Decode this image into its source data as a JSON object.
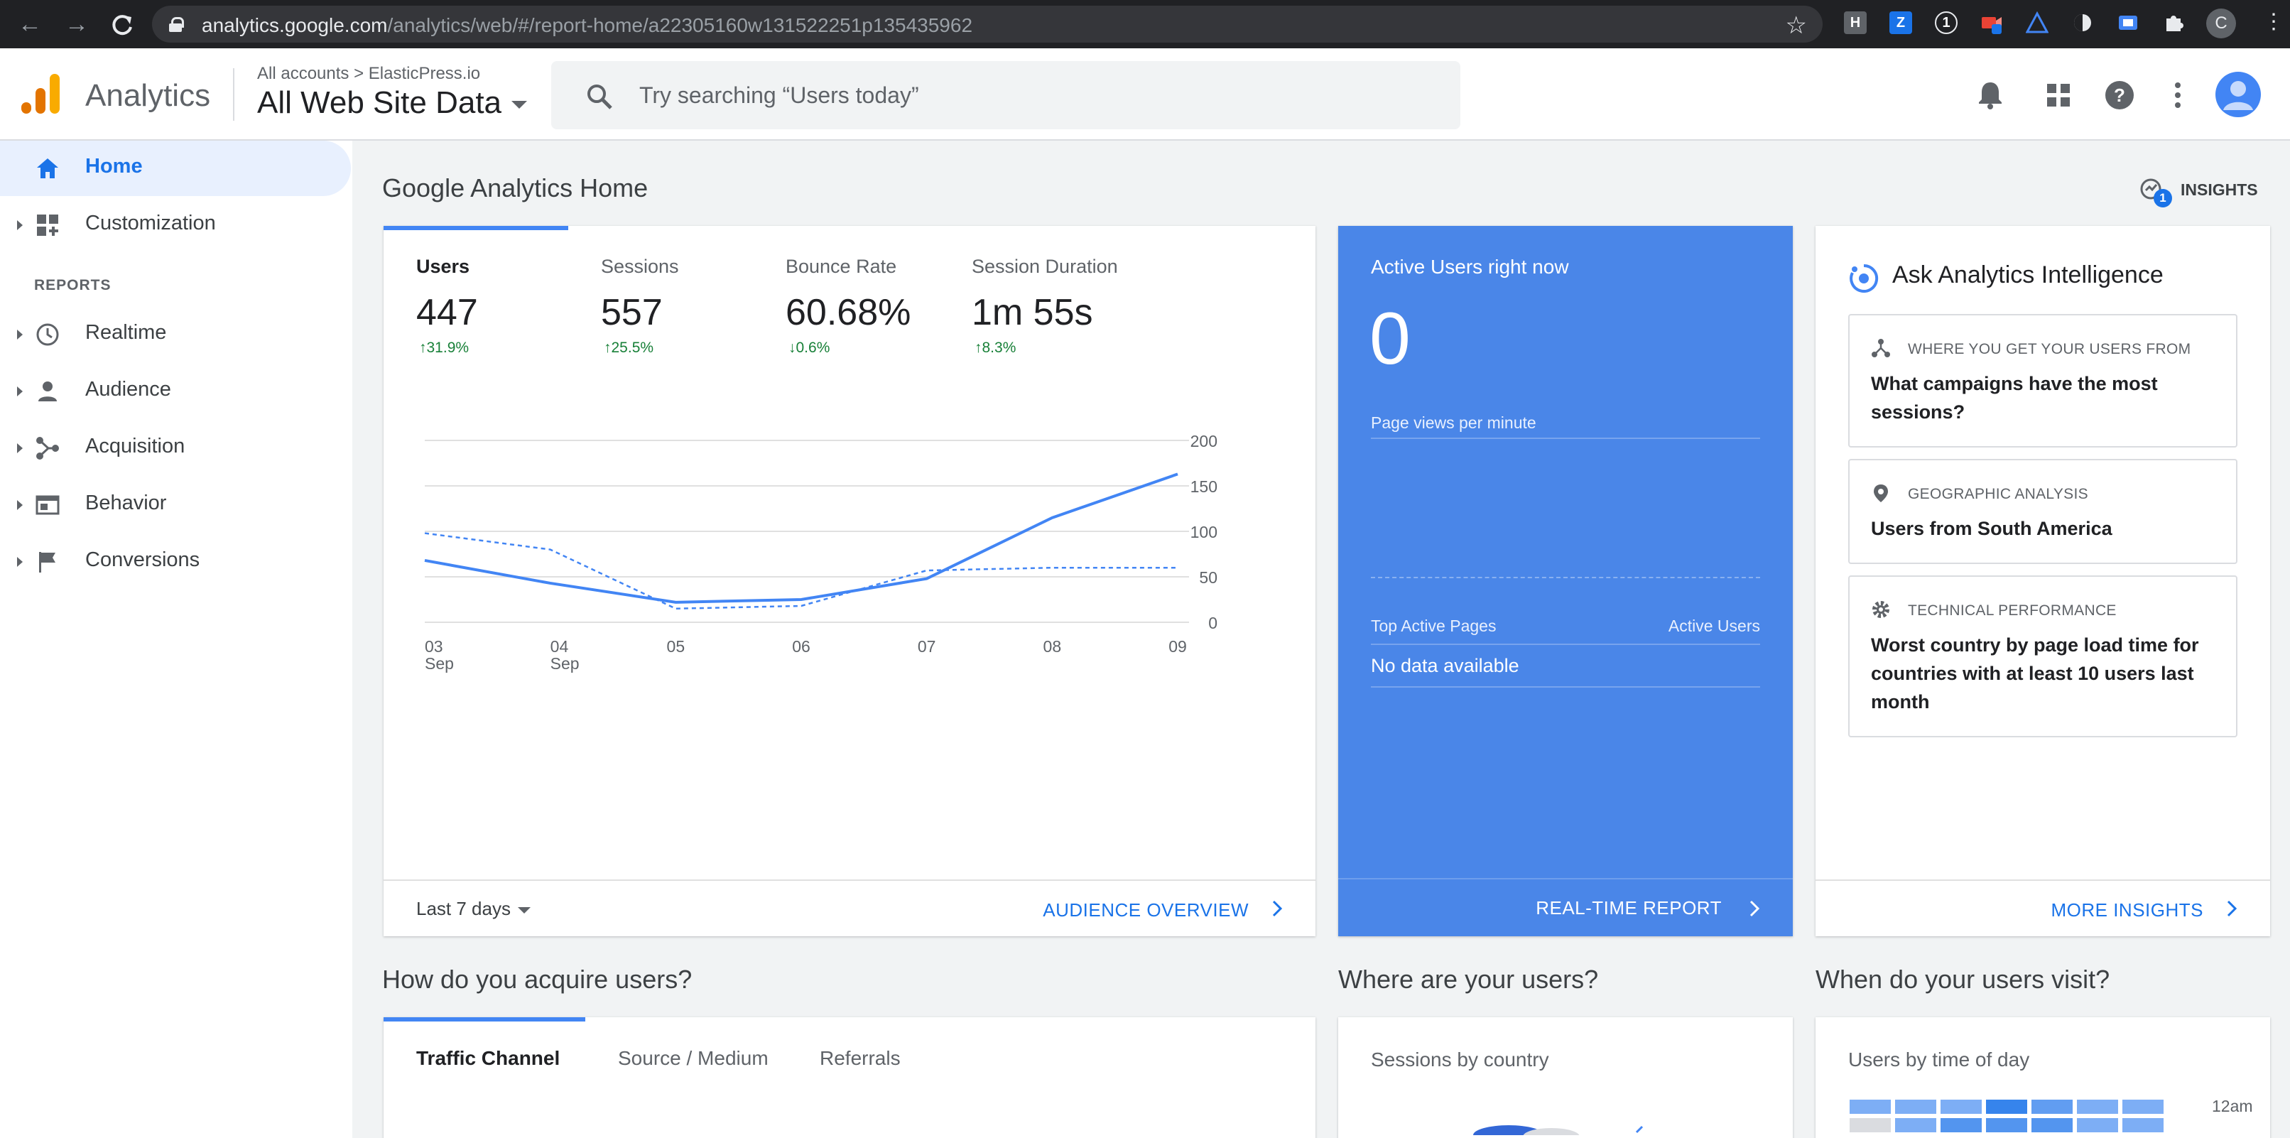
{
  "browser": {
    "url_host": "analytics.google.com",
    "url_path": "/analytics/web/#/report-home/a22305160w131522251p135435962",
    "profile_initial": "C",
    "extensions": [
      {
        "name": "h-extension-icon",
        "label": "H",
        "color": "#5f6368"
      },
      {
        "name": "z-extension-icon",
        "label": "Z",
        "color": "#1a73e8"
      },
      {
        "name": "1password-extension-icon",
        "label": "1",
        "color": "#202124"
      }
    ]
  },
  "header": {
    "app_name": "Analytics",
    "breadcrumb_account": "All accounts",
    "breadcrumb_separator": ">",
    "breadcrumb_property": "ElasticPress.io",
    "view_name": "All Web Site Data",
    "search_placeholder": "Try searching “Users today”"
  },
  "sidebar": {
    "top_items": [
      {
        "label": "Home",
        "icon": "home-icon",
        "active": true
      },
      {
        "label": "Customization",
        "icon": "dashboard-icon",
        "active": false
      }
    ],
    "section_label": "REPORTS",
    "report_items": [
      {
        "label": "Realtime",
        "icon": "clock-icon"
      },
      {
        "label": "Audience",
        "icon": "person-icon"
      },
      {
        "label": "Acquisition",
        "icon": "acquisition-icon"
      },
      {
        "label": "Behavior",
        "icon": "behavior-icon"
      },
      {
        "label": "Conversions",
        "icon": "flag-icon"
      }
    ]
  },
  "main": {
    "title": "Google Analytics Home",
    "insights_label": "INSIGHTS",
    "insights_badge": "1",
    "metrics": [
      {
        "label": "Users",
        "value": "447",
        "change": "↑31.9%"
      },
      {
        "label": "Sessions",
        "value": "557",
        "change": "↑25.5%"
      },
      {
        "label": "Bounce Rate",
        "value": "60.68%",
        "change": "↓0.6%"
      },
      {
        "label": "Session Duration",
        "value": "1m 55s",
        "change": "↑8.3%"
      }
    ],
    "date_range": "Last 7 days",
    "audience_link": "AUDIENCE OVERVIEW"
  },
  "chart_data": {
    "type": "line",
    "x": [
      [
        "03",
        "Sep"
      ],
      [
        "04",
        "Sep"
      ],
      [
        "05",
        ""
      ],
      [
        "06",
        ""
      ],
      [
        "07",
        ""
      ],
      [
        "08",
        ""
      ],
      [
        "09",
        ""
      ]
    ],
    "ylim": [
      0,
      200
    ],
    "yticks": [
      0,
      50,
      100,
      150,
      200
    ],
    "series": [
      {
        "style": "solid",
        "values": [
          68,
          43,
          22,
          25,
          48,
          115,
          163
        ],
        "color": "#4285f4"
      },
      {
        "style": "dashed",
        "values": [
          98,
          80,
          15,
          18,
          57,
          60,
          60
        ],
        "color": "#4285f4"
      }
    ]
  },
  "active_users": {
    "title": "Active Users right now",
    "count": "0",
    "pageviews_label": "Page views per minute",
    "top_pages_label": "Top Active Pages",
    "active_users_col": "Active Users",
    "empty_text": "No data available",
    "link": "REAL-TIME REPORT"
  },
  "intelligence": {
    "title": "Ask Analytics Intelligence",
    "questions": [
      {
        "category": "WHERE YOU GET YOUR USERS FROM",
        "icon": "source-icon",
        "text": "What campaigns have the most sessions?"
      },
      {
        "category": "GEOGRAPHIC ANALYSIS",
        "icon": "location-pin-icon",
        "text": "Users from South America"
      },
      {
        "category": "TECHNICAL PERFORMANCE",
        "icon": "gear-icon",
        "text": "Worst country by page load time for countries with at least 10 users last month"
      }
    ],
    "link": "MORE INSIGHTS"
  },
  "acquisition": {
    "title": "How do you acquire users?",
    "tabs": [
      "Traffic Channel",
      "Source / Medium",
      "Referrals"
    ]
  },
  "where": {
    "title": "Where are your users?",
    "subtitle": "Sessions by country"
  },
  "when": {
    "title": "When do your users visit?",
    "subtitle": "Users by time of day",
    "first_tick": "12am",
    "heat_rows": [
      [
        0.3,
        0.3,
        0.3,
        0.8,
        0.5,
        0.3,
        0.3
      ],
      [
        0.1,
        0.3,
        0.6,
        0.6,
        0.6,
        0.3,
        0.3
      ]
    ]
  }
}
